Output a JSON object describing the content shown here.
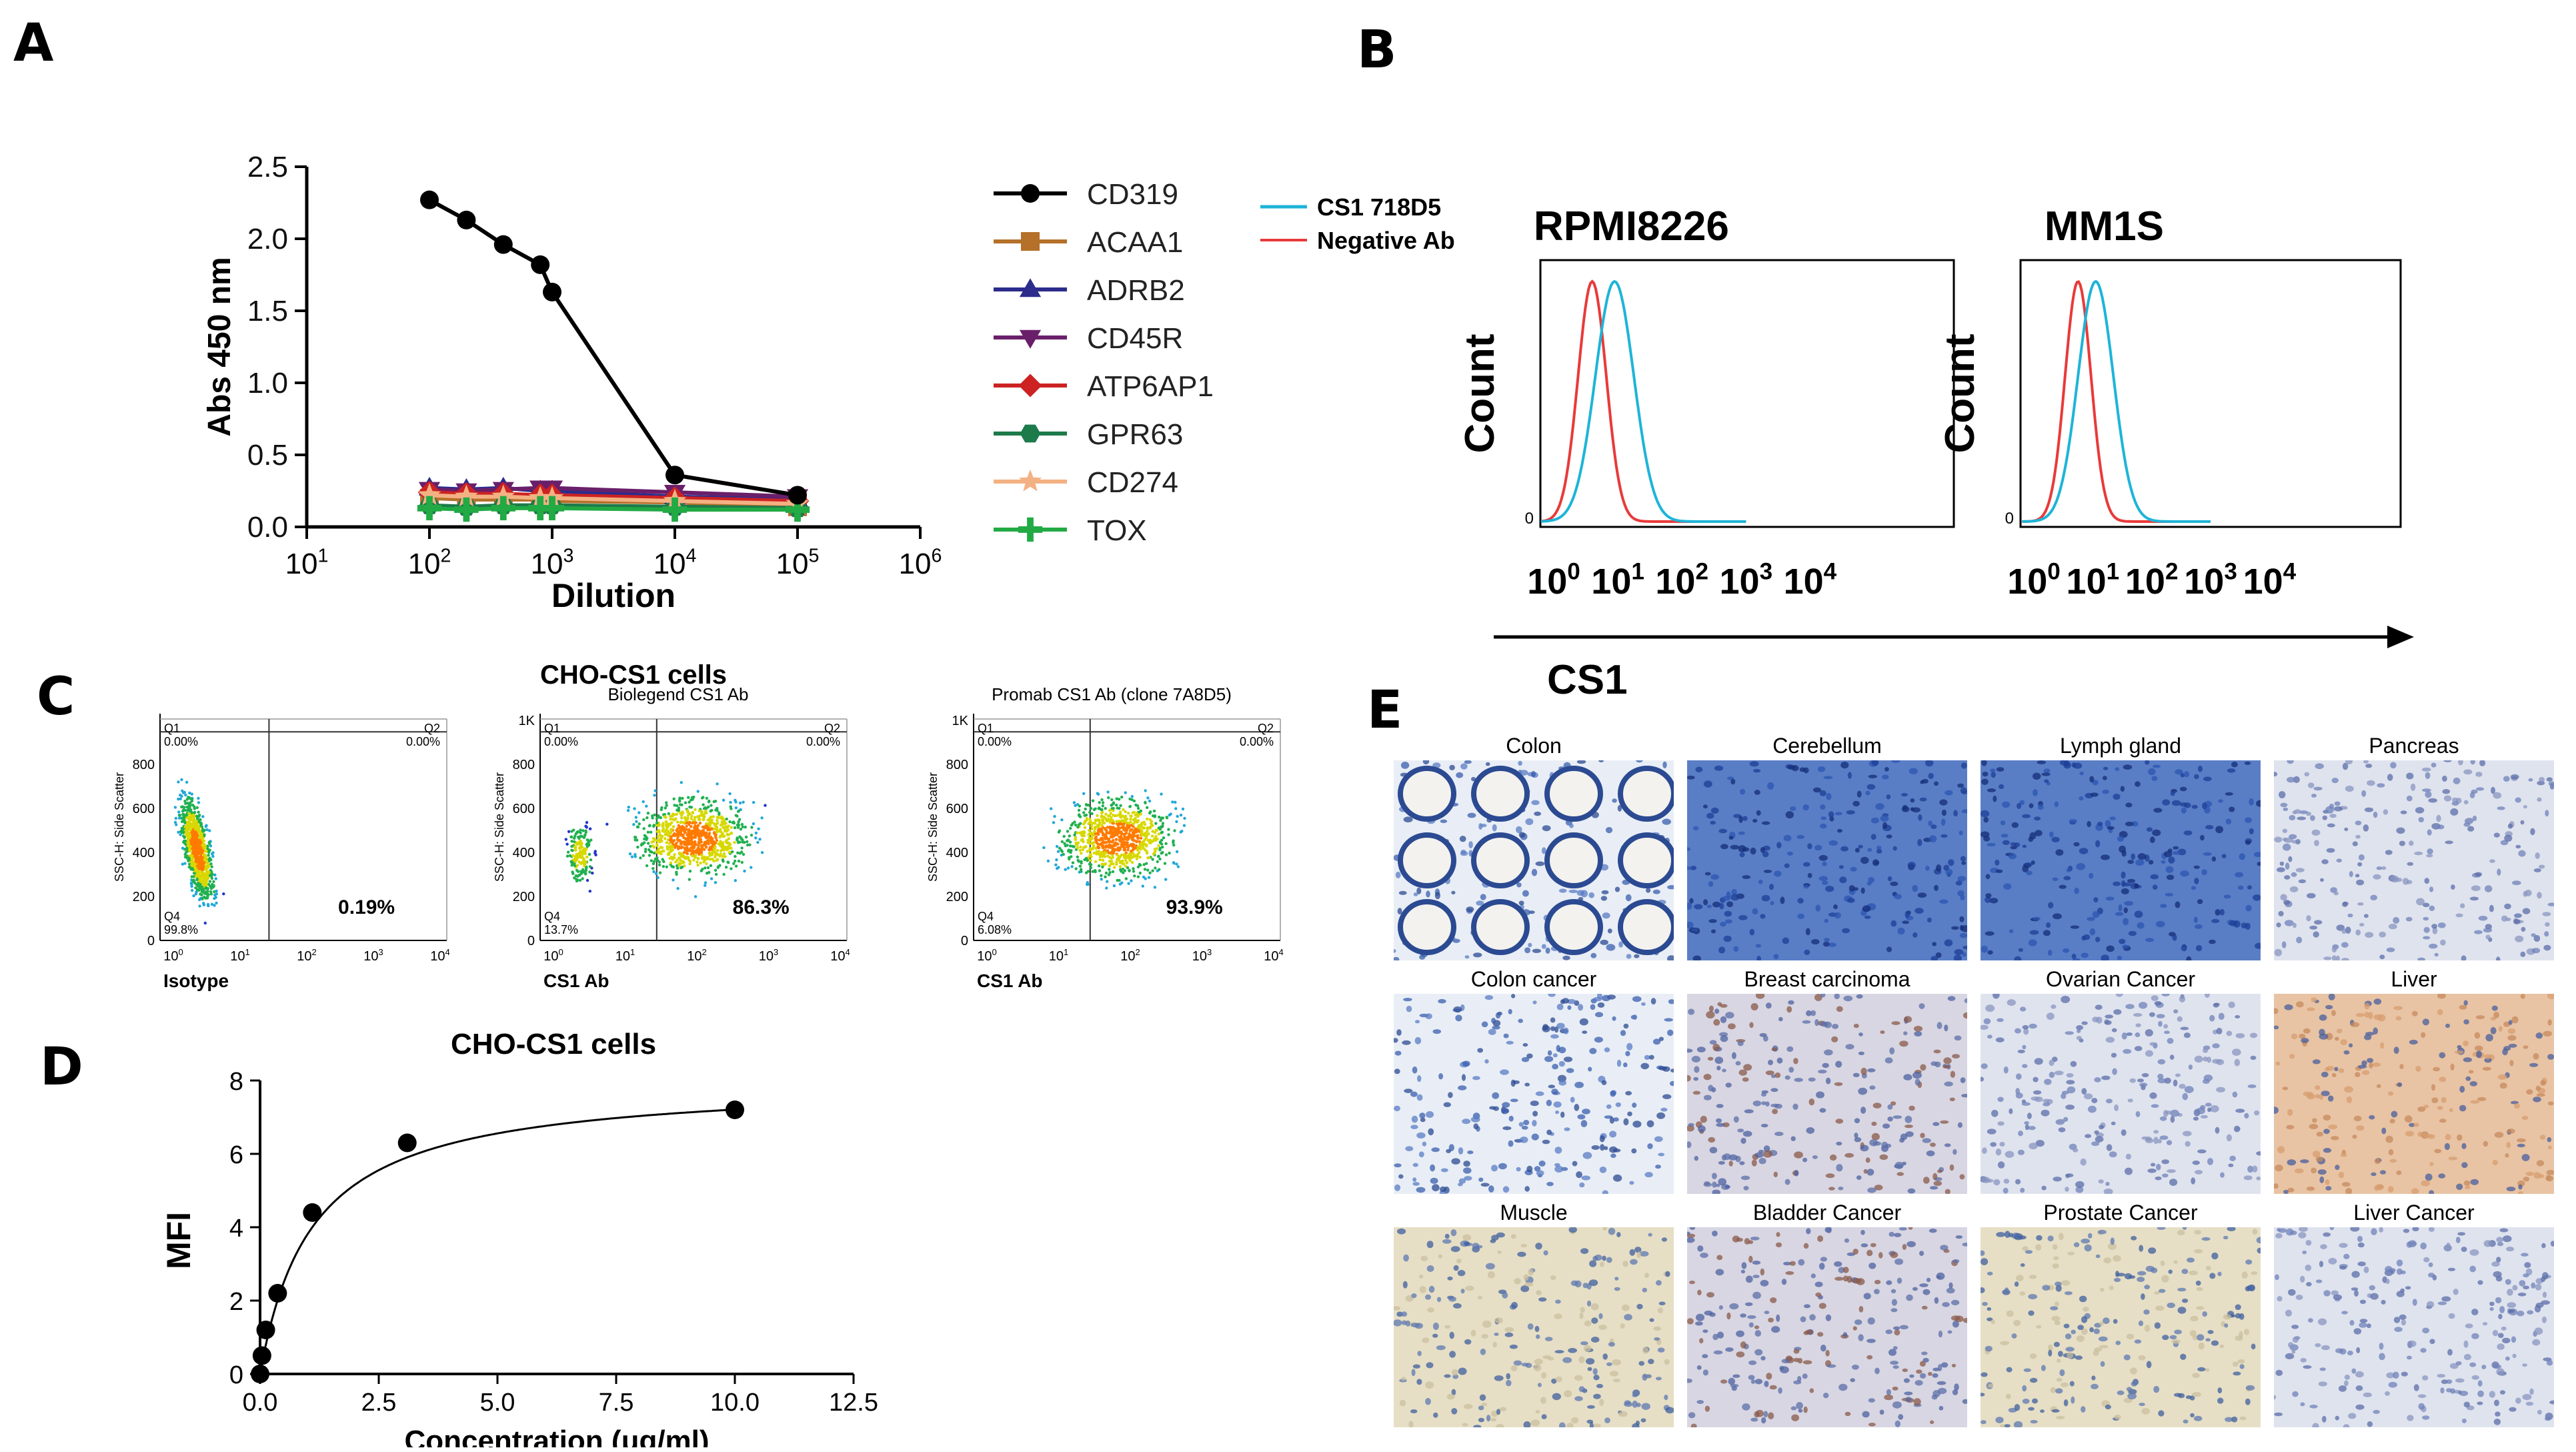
{
  "figure": {
    "panels": {
      "A": "A",
      "B": "B",
      "C": "C",
      "D": "D",
      "E": "E"
    }
  },
  "chart_data": [
    {
      "id": "A",
      "type": "line",
      "xscale": "log",
      "xlabel": "Dilution",
      "ylabel": "Abs 450 nm",
      "ylim": [
        0,
        2.5
      ],
      "yticks": [
        "0.0",
        "0.5",
        "1.0",
        "1.5",
        "2.0",
        "2.5"
      ],
      "xticks": [
        {
          "b": "10",
          "e": "1"
        },
        {
          "b": "10",
          "e": "2"
        },
        {
          "b": "10",
          "e": "3"
        },
        {
          "b": "10",
          "e": "4"
        },
        {
          "b": "10",
          "e": "5"
        },
        {
          "b": "10",
          "e": "6"
        }
      ],
      "x": [
        100,
        200,
        400,
        800,
        1000,
        10000,
        100000
      ],
      "series": [
        {
          "name": "CD319",
          "color": "#000000",
          "marker": "circle",
          "values": [
            2.27,
            2.13,
            1.96,
            1.82,
            1.63,
            0.36,
            0.22
          ]
        },
        {
          "name": "ACAA1",
          "color": "#b5702a",
          "marker": "square",
          "values": [
            0.2,
            0.19,
            0.19,
            0.19,
            0.18,
            0.17,
            0.14
          ]
        },
        {
          "name": "ADRB2",
          "color": "#2c2c8c",
          "marker": "triangle-up",
          "values": [
            0.27,
            0.26,
            0.27,
            0.25,
            0.25,
            0.21,
            0.19
          ]
        },
        {
          "name": "CD45R",
          "color": "#6a1f6a",
          "marker": "triangle-down",
          "values": [
            0.26,
            0.25,
            0.26,
            0.27,
            0.27,
            0.24,
            0.21
          ]
        },
        {
          "name": "ATP6AP1",
          "color": "#cc2222",
          "marker": "diamond",
          "values": [
            0.24,
            0.23,
            0.23,
            0.22,
            0.22,
            0.2,
            0.18
          ]
        },
        {
          "name": "GPR63",
          "color": "#1d7a4a",
          "marker": "hexagon",
          "values": [
            0.15,
            0.14,
            0.15,
            0.15,
            0.15,
            0.14,
            0.13
          ]
        },
        {
          "name": "CD274",
          "color": "#f4b183",
          "marker": "star",
          "values": [
            0.22,
            0.21,
            0.21,
            0.2,
            0.2,
            0.18,
            0.16
          ]
        },
        {
          "name": "TOX",
          "color": "#22aa44",
          "marker": "plus",
          "values": [
            0.13,
            0.12,
            0.13,
            0.13,
            0.13,
            0.12,
            0.12
          ]
        }
      ]
    },
    {
      "id": "B",
      "type": "histogram",
      "legend": [
        {
          "name": "CS1 718D5",
          "color": "#1eb4d8"
        },
        {
          "name": "Negative Ab",
          "color": "#e83a3a"
        }
      ],
      "ylabel": "Count",
      "xlabel": "CS1",
      "xticks": [
        {
          "b": "10",
          "e": "0"
        },
        {
          "b": "10",
          "e": "1"
        },
        {
          "b": "10",
          "e": "2"
        },
        {
          "b": "10",
          "e": "3"
        },
        {
          "b": "10",
          "e": "4"
        }
      ],
      "zero_label": "0",
      "plots": [
        {
          "title": "RPMI8226",
          "cs1_peak_log": 0.95,
          "neg_peak_log": 0.6
        },
        {
          "title": "MM1S",
          "cs1_peak_log": 1.05,
          "neg_peak_log": 0.75
        }
      ]
    },
    {
      "id": "C",
      "type": "scatter",
      "title": "CHO-CS1 cells",
      "ylabel": "SSC-H: Side Scatter",
      "plots": [
        {
          "subtitle": "",
          "xlabel": "Isotype",
          "q1": "Q1",
          "q1v": "0.00%",
          "q2": "Q2",
          "q2v": "0.00%",
          "q4": "Q4",
          "q4v": "99.8%",
          "pct": "0.19%",
          "yticks": [
            "0",
            "200",
            "400",
            "600",
            "800"
          ]
        },
        {
          "subtitle": "Biolegend CS1 Ab",
          "xlabel": "CS1 Ab",
          "q1": "Q1",
          "q1v": "0.00%",
          "q2": "Q2",
          "q2v": "0.00%",
          "q4": "Q4",
          "q4v": "13.7%",
          "pct": "86.3%",
          "yticks": [
            "0",
            "200",
            "400",
            "600",
            "800",
            "1K"
          ]
        },
        {
          "subtitle": "Promab CS1 Ab (clone 7A8D5)",
          "xlabel": "CS1 Ab",
          "q1": "Q1",
          "q1v": "0.00%",
          "q2": "Q2",
          "q2v": "0.00%",
          "q4": "Q4",
          "q4v": "6.08%",
          "pct": "93.9%",
          "yticks": [
            "0",
            "200",
            "400",
            "600",
            "800",
            "1K"
          ]
        }
      ],
      "xticks": [
        {
          "b": "10",
          "e": "0"
        },
        {
          "b": "10",
          "e": "1"
        },
        {
          "b": "10",
          "e": "2"
        },
        {
          "b": "10",
          "e": "3"
        },
        {
          "b": "10",
          "e": "4"
        }
      ]
    },
    {
      "id": "D",
      "type": "scatter",
      "title": "CHO-CS1 cells",
      "xlabel": "Concentration (μg/ml)",
      "ylabel": "MFI",
      "xlim": [
        0,
        12.5
      ],
      "ylim": [
        0,
        8
      ],
      "xticks": [
        "0.0",
        "2.5",
        "5.0",
        "7.5",
        "10.0",
        "12.5"
      ],
      "yticks": [
        "0",
        "2",
        "4",
        "6",
        "8"
      ],
      "x": [
        0,
        0.04,
        0.12,
        0.37,
        1.1,
        3.1,
        10
      ],
      "y": [
        0.0,
        0.5,
        1.2,
        2.2,
        4.4,
        6.3,
        7.2
      ],
      "fit": {
        "model": "one-site binding",
        "bmax": 8.0,
        "kd": 1.1
      }
    }
  ],
  "panelE": {
    "tissues": [
      {
        "label": "Colon",
        "tone": "blue"
      },
      {
        "label": "Cerebellum",
        "tone": "deepblue"
      },
      {
        "label": "Lymph gland",
        "tone": "deepblue"
      },
      {
        "label": "Pancreas",
        "tone": "pale"
      },
      {
        "label": "Colon cancer",
        "tone": "blue"
      },
      {
        "label": "Breast carcinoma",
        "tone": "mixed"
      },
      {
        "label": "Ovarian Cancer",
        "tone": "pale"
      },
      {
        "label": "Liver",
        "tone": "orange"
      },
      {
        "label": "Muscle",
        "tone": "beige"
      },
      {
        "label": "Bladder Cancer",
        "tone": "mixed"
      },
      {
        "label": "Prostate Cancer",
        "tone": "beige"
      },
      {
        "label": "Liver Cancer",
        "tone": "pale"
      }
    ]
  }
}
